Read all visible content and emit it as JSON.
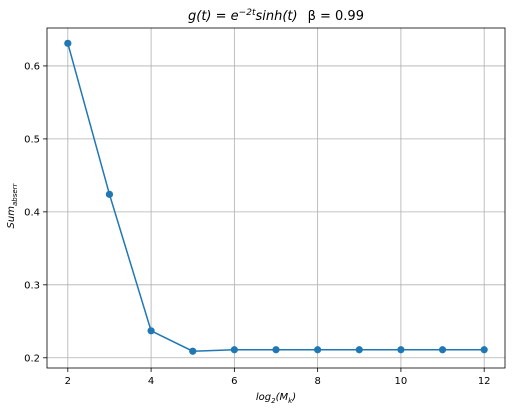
{
  "chart_data": {
    "type": "line",
    "title": {
      "g_part": "g(t) = e",
      "g_exponent": "−2t",
      "g_tail": "sinh(t)",
      "beta_part": "β = 0.99"
    },
    "xlabel": {
      "base": "log",
      "sub": "2",
      "open": "(M",
      "sub2": "k",
      "close": ")"
    },
    "ylabel": {
      "base": "Sum",
      "sub": "abserr"
    },
    "x": [
      2,
      3,
      4,
      5,
      6,
      7,
      8,
      9,
      10,
      11,
      12
    ],
    "series": [
      {
        "values": [
          0.631,
          0.424,
          0.237,
          0.209,
          0.211,
          0.211,
          0.211,
          0.211,
          0.211,
          0.211,
          0.211
        ]
      }
    ],
    "xlim": [
      1.5,
      12.5
    ],
    "ylim": [
      0.186,
      0.652
    ],
    "xticks": [
      2,
      4,
      6,
      8,
      10,
      12
    ],
    "xtick_labels": [
      "2",
      "4",
      "6",
      "8",
      "10",
      "12"
    ],
    "yticks": [
      0.2,
      0.3,
      0.4,
      0.5,
      0.6
    ],
    "ytick_labels": [
      "0.2",
      "0.3",
      "0.4",
      "0.5",
      "0.6"
    ],
    "grid": true,
    "line_color": "#1f77b4",
    "marker": "circle"
  }
}
